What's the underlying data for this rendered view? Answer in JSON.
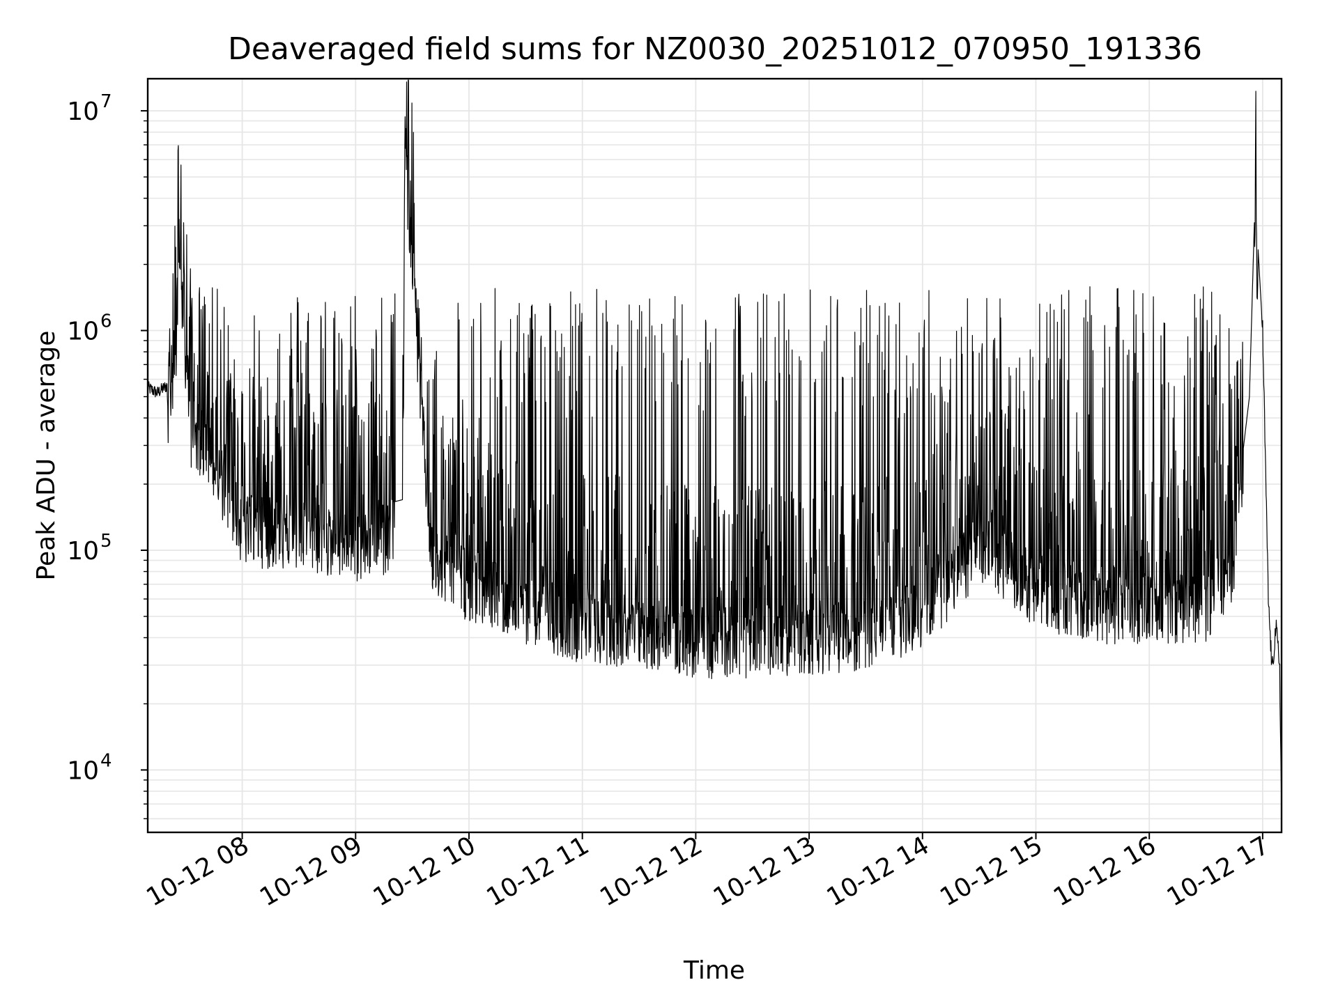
{
  "chart_data": {
    "type": "line",
    "title": "Deaveraged field sums for NZ0030_20251012_070950_191336",
    "xlabel": "Time",
    "ylabel": "Peak ADU - average",
    "yscale": "log",
    "ylim": [
      5200,
      14000000
    ],
    "xlim": [
      "2025-10-12 07:10",
      "2025-10-12 17:10"
    ],
    "grid": true,
    "line_color": "#000000",
    "grid_color": "#e6e6e6",
    "x_ticks": [
      "10-12 08",
      "10-12 09",
      "10-12 10",
      "10-12 11",
      "10-12 12",
      "10-12 13",
      "10-12 14",
      "10-12 15",
      "10-12 16",
      "10-12 17"
    ],
    "y_ticks": [
      {
        "value": 10000,
        "base": "10",
        "exp": "4"
      },
      {
        "value": 100000,
        "base": "10",
        "exp": "5"
      },
      {
        "value": 1000000,
        "base": "10",
        "exp": "6"
      },
      {
        "value": 10000000,
        "base": "10",
        "exp": "7"
      }
    ],
    "series": [
      {
        "x": [
          "2025-10-12 07:10",
          "2025-10-12 07:15",
          "2025-10-12 07:20",
          "2025-10-12 07:25",
          "2025-10-12 07:27",
          "2025-10-12 07:29",
          "2025-10-12 07:33",
          "2025-10-12 07:40",
          "2025-10-12 08:00",
          "2025-10-12 08:30",
          "2025-10-12 09:00",
          "2025-10-12 09:25",
          "2025-10-12 09:26",
          "2025-10-12 09:40",
          "2025-10-12 10:00",
          "2025-10-12 10:30",
          "2025-10-12 11:00",
          "2025-10-12 11:30",
          "2025-10-12 12:00",
          "2025-10-12 12:30",
          "2025-10-12 13:00",
          "2025-10-12 13:30",
          "2025-10-12 14:00",
          "2025-10-12 14:30",
          "2025-10-12 15:00",
          "2025-10-12 15:30",
          "2025-10-12 16:00",
          "2025-10-12 16:30",
          "2025-10-12 16:45",
          "2025-10-12 16:53",
          "2025-10-12 16:56",
          "2025-10-12 17:00",
          "2025-10-12 17:03",
          "2025-10-12 17:05",
          "2025-10-12 17:07",
          "2025-10-12 17:09",
          "2025-10-12 17:10"
        ],
        "y": [
          550000,
          520000,
          560000,
          1200000,
          4100000,
          1300000,
          500000,
          450000,
          180000,
          170000,
          150000,
          170000,
          10000000,
          130000,
          100000,
          80000,
          65000,
          62000,
          55000,
          56000,
          58000,
          60000,
          75000,
          150000,
          95000,
          80000,
          80000,
          80000,
          130000,
          500000,
          4100000,
          1000000,
          60000,
          28000,
          45000,
          30000,
          6000
        ]
      }
    ]
  }
}
